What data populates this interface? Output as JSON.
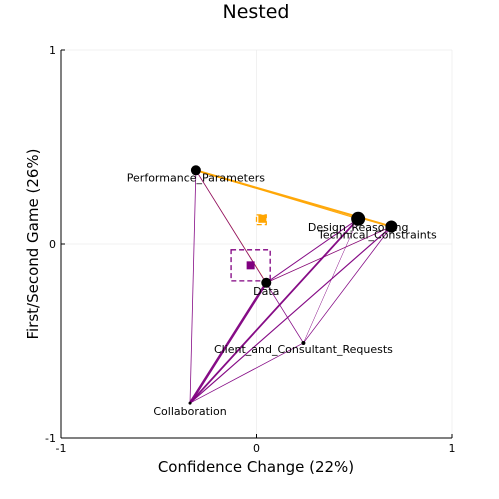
{
  "colors": {
    "purple": "#800080",
    "orange": "#FFA500",
    "grid": "#ebebeb",
    "axis": "#000000"
  },
  "chart_data": {
    "type": "scatter",
    "title": "Nested",
    "xlabel": "Confidence Change (22%)",
    "ylabel": "First/Second Game (26%)",
    "xlim": [
      -1,
      1
    ],
    "ylim": [
      -1,
      1
    ],
    "xticks": [
      "-1",
      "0",
      "1"
    ],
    "yticks": [
      "-1",
      "0",
      "1"
    ],
    "grid": true,
    "nodes": [
      {
        "label": "Performance_Parameters",
        "x": -0.31,
        "y": 0.38,
        "size": 5
      },
      {
        "label": "Design_Reasoning",
        "x": 0.52,
        "y": 0.13,
        "size": 7
      },
      {
        "label": "Technical_Constraints",
        "x": 0.69,
        "y": 0.09,
        "size": 6
      },
      {
        "label": "Data",
        "x": 0.05,
        "y": -0.2,
        "size": 5
      },
      {
        "label": "Client_and_Consultant_Requests",
        "x": 0.24,
        "y": -0.51,
        "size": 2
      },
      {
        "label": "Collaboration",
        "x": -0.34,
        "y": -0.82,
        "size": 1.5
      }
    ],
    "edges": [
      {
        "from": "Performance_Parameters",
        "to": "Technical_Constraints",
        "color": "orange",
        "width": 2.0
      },
      {
        "from": "Performance_Parameters",
        "to": "Design_Reasoning",
        "color": "orange",
        "width": 1.2
      },
      {
        "from": "Performance_Parameters",
        "to": "Data",
        "color": "orange",
        "width": 0.8
      },
      {
        "from": "Data",
        "to": "Technical_Constraints",
        "color": "orange",
        "width": 0.5
      },
      {
        "from": "Performance_Parameters",
        "to": "Client_and_Consultant_Requests",
        "color": "purple",
        "width": 0.8
      },
      {
        "from": "Performance_Parameters",
        "to": "Collaboration",
        "color": "purple",
        "width": 0.8
      },
      {
        "from": "Collaboration",
        "to": "Data",
        "color": "purple",
        "width": 2.5
      },
      {
        "from": "Collaboration",
        "to": "Design_Reasoning",
        "color": "purple",
        "width": 1.8
      },
      {
        "from": "Collaboration",
        "to": "Technical_Constraints",
        "color": "purple",
        "width": 1.2
      },
      {
        "from": "Collaboration",
        "to": "Client_and_Consultant_Requests",
        "color": "purple",
        "width": 0.8
      },
      {
        "from": "Data",
        "to": "Design_Reasoning",
        "color": "purple",
        "width": 1.0
      },
      {
        "from": "Data",
        "to": "Technical_Constraints",
        "color": "purple",
        "width": 0.8
      },
      {
        "from": "Client_and_Consultant_Requests",
        "to": "Design_Reasoning",
        "color": "purple",
        "width": 0.5
      },
      {
        "from": "Client_and_Consultant_Requests",
        "to": "Technical_Constraints",
        "color": "purple",
        "width": 0.8
      }
    ],
    "centroids": [
      {
        "color": "orange",
        "x": 0.03,
        "y": 0.13
      },
      {
        "color": "purple",
        "x": -0.03,
        "y": -0.11
      }
    ],
    "confidence_boxes": [
      {
        "color": "orange",
        "x": [
          0.0,
          0.05
        ],
        "y": [
          0.1,
          0.15
        ]
      },
      {
        "color": "purple",
        "x": [
          -0.13,
          0.07
        ],
        "y": [
          -0.19,
          -0.03
        ]
      }
    ]
  }
}
